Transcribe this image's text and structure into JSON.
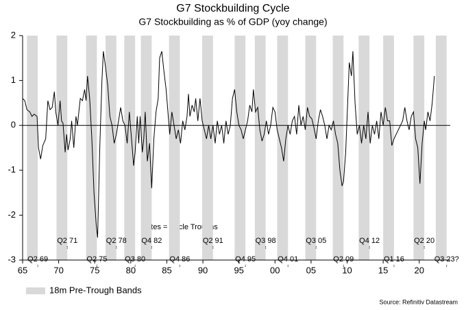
{
  "chart_data": {
    "type": "line",
    "title": "G7 Stockbuilding Cycle",
    "subtitle": "G7 Stockbuilding as % of GDP (yoy change)",
    "annotation": "Dates = Cycle Troughs",
    "legend_label": "18m Pre-Trough Bands",
    "source": "Source: Refinitiv Datastream",
    "color": "#000000",
    "band_color": "#d9d9d9",
    "xlim": [
      1965,
      2024.3
    ],
    "ylim": [
      -3,
      2
    ],
    "yticks": [
      -3,
      -2,
      -1,
      0,
      1,
      2
    ],
    "xticks": [
      {
        "value": 1965,
        "label": "65"
      },
      {
        "value": 1970,
        "label": "70"
      },
      {
        "value": 1975,
        "label": "75"
      },
      {
        "value": 1980,
        "label": "80"
      },
      {
        "value": 1985,
        "label": "85"
      },
      {
        "value": 1990,
        "label": "90"
      },
      {
        "value": 1995,
        "label": "95"
      },
      {
        "value": 2000,
        "label": "00"
      },
      {
        "value": 2005,
        "label": "05"
      },
      {
        "value": 2010,
        "label": "10"
      },
      {
        "value": 2015,
        "label": "15"
      },
      {
        "value": 2020,
        "label": "20"
      }
    ],
    "troughs": [
      {
        "label": "Q2 69",
        "start": 1965.6,
        "end": 1967.1
      },
      {
        "label": "Q2 71",
        "start": 1969.7,
        "end": 1971.2
      },
      {
        "label": "Q2 75",
        "start": 1973.8,
        "end": 1975.3
      },
      {
        "label": "Q2 78",
        "start": 1976.5,
        "end": 1978.0
      },
      {
        "label": "Q3 80",
        "start": 1979.1,
        "end": 1980.6
      },
      {
        "label": "Q4 82",
        "start": 1981.4,
        "end": 1982.9
      },
      {
        "label": "Q4 86",
        "start": 1985.3,
        "end": 1986.8
      },
      {
        "label": "Q2 91",
        "start": 1989.9,
        "end": 1991.4
      },
      {
        "label": "Q4 95",
        "start": 1994.4,
        "end": 1995.9
      },
      {
        "label": "Q3 98",
        "start": 1997.2,
        "end": 1998.7
      },
      {
        "label": "Q4 01",
        "start": 2000.3,
        "end": 2001.8
      },
      {
        "label": "Q3 05",
        "start": 2004.2,
        "end": 2005.7
      },
      {
        "label": "Q2 09",
        "start": 2008.0,
        "end": 2009.5
      },
      {
        "label": "Q4 12",
        "start": 2011.6,
        "end": 2013.1
      },
      {
        "label": "Q1 16",
        "start": 2015.0,
        "end": 2016.5
      },
      {
        "label": "Q2 20",
        "start": 2019.2,
        "end": 2020.7
      },
      {
        "label": "Q3 23?",
        "start": 2022.3,
        "end": 2023.8
      }
    ],
    "x": [
      1965,
      1965.3,
      1965.6,
      1966,
      1966.3,
      1966.6,
      1967,
      1967.2,
      1967.5,
      1967.8,
      1968.2,
      1968.5,
      1968.8,
      1969.1,
      1969.4,
      1969.6,
      1969.9,
      1970.2,
      1970.4,
      1970.6,
      1970.9,
      1971.1,
      1971.3,
      1971.6,
      1971.8,
      1972.1,
      1972.4,
      1972.6,
      1973.0,
      1973.3,
      1973.6,
      1973.8,
      1974.0,
      1974.3,
      1974.6,
      1974.9,
      1975.2,
      1975.4,
      1975.7,
      1976.0,
      1976.2,
      1976.5,
      1976.8,
      1977.1,
      1977.4,
      1977.7,
      1978.0,
      1978.3,
      1978.6,
      1978.9,
      1979.2,
      1979.5,
      1979.8,
      1980.1,
      1980.4,
      1980.6,
      1980.9,
      1981.1,
      1981.3,
      1981.6,
      1981.8,
      1982.0,
      1982.3,
      1982.6,
      1982.9,
      1983.2,
      1983.5,
      1983.8,
      1984.0,
      1984.3,
      1984.6,
      1984.9,
      1985.2,
      1985.4,
      1985.7,
      1986.0,
      1986.3,
      1986.6,
      1986.9,
      1987.2,
      1987.5,
      1987.8,
      1988.0,
      1988.2,
      1988.5,
      1988.8,
      1989.0,
      1989.3,
      1989.6,
      1989.9,
      1990.2,
      1990.5,
      1990.8,
      1991.1,
      1991.4,
      1991.7,
      1992.0,
      1992.3,
      1992.6,
      1992.9,
      1993.2,
      1993.5,
      1993.8,
      1994.1,
      1994.4,
      1994.7,
      1995.0,
      1995.3,
      1995.6,
      1995.9,
      1996.2,
      1996.5,
      1996.8,
      1997.0,
      1997.3,
      1997.6,
      1997.9,
      1998.2,
      1998.5,
      1998.8,
      1999.1,
      1999.4,
      1999.7,
      2000.0,
      2000.3,
      2000.6,
      2000.9,
      2001.2,
      2001.5,
      2001.8,
      2002.1,
      2002.4,
      2002.7,
      2003.0,
      2003.3,
      2003.6,
      2003.9,
      2004.2,
      2004.5,
      2004.8,
      2005.1,
      2005.4,
      2005.7,
      2006.0,
      2006.3,
      2006.6,
      2006.9,
      2007.2,
      2007.5,
      2007.8,
      2008.1,
      2008.4,
      2008.7,
      2009.0,
      2009.3,
      2009.5,
      2009.8,
      2010.1,
      2010.3,
      2010.6,
      2010.8,
      2011.1,
      2011.4,
      2011.7,
      2012.0,
      2012.3,
      2012.6,
      2012.9,
      2013.2,
      2013.5,
      2013.8,
      2014.1,
      2014.4,
      2014.7,
      2015.0,
      2015.3,
      2015.6,
      2015.9,
      2016.2,
      2016.5,
      2016.8,
      2017.1,
      2017.4,
      2017.7,
      2018.0,
      2018.3,
      2018.6,
      2018.9,
      2019.2,
      2019.5,
      2019.8,
      2020.1,
      2020.4,
      2020.7,
      2020.9,
      2021.2,
      2021.5,
      2021.8,
      2022.1
    ],
    "values": [
      0.6,
      0.55,
      0.35,
      0.3,
      0.2,
      0.25,
      0.2,
      -0.5,
      -0.75,
      -0.45,
      -0.3,
      0.55,
      0.35,
      0.4,
      0.75,
      0.3,
      0.0,
      0.55,
      0.1,
      0.05,
      -0.6,
      -0.2,
      -0.55,
      -0.3,
      0.1,
      -0.5,
      0.2,
      0.0,
      0.6,
      0.55,
      0.8,
      0.55,
      1.1,
      0.6,
      -0.3,
      -1.5,
      -2.2,
      -2.5,
      -0.5,
      1.0,
      1.65,
      1.3,
      0.9,
      0.2,
      0.0,
      -0.4,
      -0.2,
      0.1,
      0.4,
      0.1,
      0.0,
      -0.4,
      0.3,
      -0.3,
      -0.9,
      -0.6,
      0.2,
      -0.4,
      0.2,
      -0.6,
      -0.3,
      0.3,
      -0.8,
      -0.4,
      -1.4,
      -0.3,
      0.3,
      0.6,
      1.5,
      1.65,
      1.2,
      0.8,
      0.2,
      -0.2,
      0.3,
      0.0,
      -0.3,
      -0.1,
      -0.4,
      0.1,
      -0.1,
      0.2,
      0.7,
      0.2,
      0.45,
      0.3,
      0.6,
      0.1,
      0.6,
      0.1,
      -0.1,
      -0.3,
      0.0,
      -0.3,
      0.0,
      -0.4,
      0.1,
      -0.2,
      0.0,
      -0.4,
      0.1,
      -0.2,
      0.0,
      0.6,
      0.8,
      0.3,
      0.0,
      -0.1,
      -0.3,
      -0.1,
      0.1,
      0.45,
      0.3,
      0.8,
      0.3,
      0.4,
      -0.1,
      -0.35,
      -0.2,
      0.1,
      -0.2,
      0.0,
      0.4,
      0.3,
      -0.1,
      -0.3,
      -0.5,
      -0.8,
      -0.3,
      0.0,
      -0.2,
      0.1,
      0.2,
      -0.2,
      0.45,
      0.0,
      0.2,
      -0.1,
      0.4,
      0.2,
      0.15,
      -0.05,
      -0.3,
      0.1,
      0.35,
      0.2,
      0.0,
      -0.3,
      0.0,
      -0.1,
      0.1,
      -0.2,
      -0.4,
      -1.0,
      -1.35,
      -1.25,
      -0.6,
      0.6,
      1.4,
      1.1,
      1.65,
      0.5,
      -0.2,
      0.0,
      -0.4,
      0.0,
      -0.3,
      0.3,
      -0.4,
      0.0,
      -0.2,
      0.1,
      -0.3,
      0.3,
      0.0,
      0.4,
      0.1,
      0.1,
      -0.45,
      -0.3,
      -0.2,
      -0.1,
      0.0,
      0.1,
      0.4,
      0.1,
      -0.1,
      0.2,
      0.3,
      -0.3,
      -0.5,
      -1.3,
      -0.4,
      0.1,
      -0.1,
      0.3,
      0.1,
      0.5,
      1.1
    ]
  }
}
